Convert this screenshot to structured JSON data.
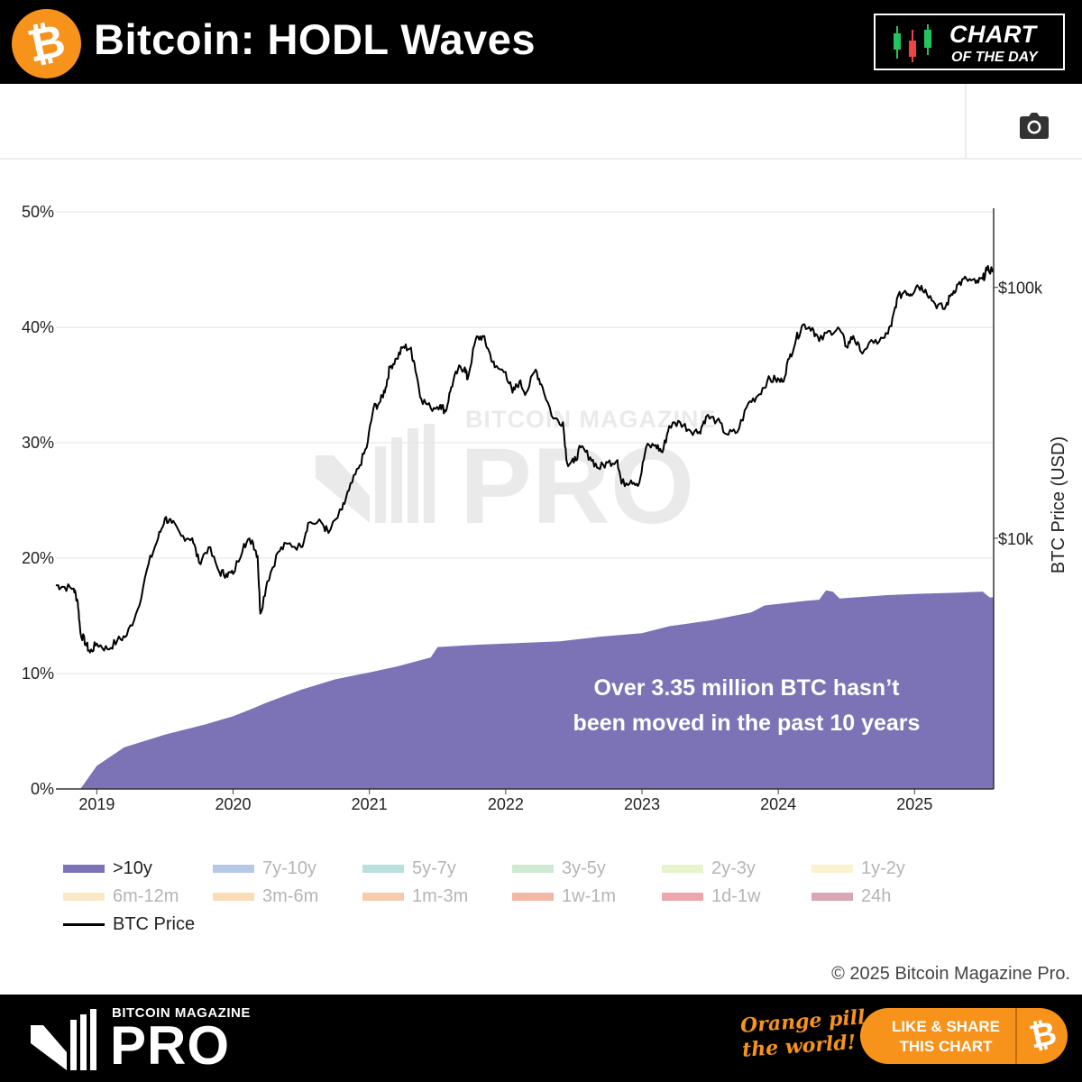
{
  "header": {
    "logo_glyph": "₿",
    "title": "Bitcoin: HODL Waves",
    "badge_line1": "CHART",
    "badge_line2": "OF THE DAY"
  },
  "toolbar": {
    "camera_icon": "camera-icon"
  },
  "watermark": {
    "line1": "BITCOIN MAGAZINE",
    "line2": "PRO"
  },
  "annotation": {
    "line1": "Over 3.35 million BTC hasn’t",
    "line2": "been moved in the past 10 years"
  },
  "legend": {
    "items": [
      {
        "label": ">10y",
        "color": "#7c73b6"
      },
      {
        "label": "7y-10y",
        "color": "#b7c7e6"
      },
      {
        "label": "5y-7y",
        "color": "#b8e0dc"
      },
      {
        "label": "3y-5y",
        "color": "#cfe9d2"
      },
      {
        "label": "2y-3y",
        "color": "#e6f3cc"
      },
      {
        "label": "1y-2y",
        "color": "#fbf3cf"
      },
      {
        "label": "6m-12m",
        "color": "#fbe9c5"
      },
      {
        "label": "3m-6m",
        "color": "#fbdcb7"
      },
      {
        "label": "1m-3m",
        "color": "#f9cbad"
      },
      {
        "label": "1w-1m",
        "color": "#f4b7a6"
      },
      {
        "label": "1d-1w",
        "color": "#eba7ad"
      },
      {
        "label": "24h",
        "color": "#dca6b5"
      }
    ],
    "price_label": "BTC Price"
  },
  "copyright": "© 2025 Bitcoin Magazine Pro.",
  "footer": {
    "brand_small": "BITCOIN MAGAZINE",
    "brand_large": "PRO",
    "slogan_line1": "Orange pill",
    "slogan_line2": "the world!",
    "share_line1": "LIKE & SHARE",
    "share_line2": "THIS CHART",
    "share_glyph": "₿"
  },
  "chart_data": {
    "type": "area",
    "y_left": {
      "ticks": [
        "0%",
        "10%",
        "20%",
        "30%",
        "40%",
        "50%"
      ],
      "range": [
        0,
        50
      ]
    },
    "y_right": {
      "label": "BTC Price (USD)",
      "ticks": [
        "$10k",
        "$100k"
      ],
      "scale": "log",
      "range": [
        1000,
        200000
      ]
    },
    "x": {
      "ticks": [
        "2019",
        "2020",
        "2021",
        "2022",
        "2023",
        "2024",
        "2025"
      ],
      "range": [
        2018.7,
        2025.58
      ]
    },
    "series": [
      {
        "name": ">10y",
        "type": "area",
        "color": "#7c73b6",
        "points": [
          [
            2018.7,
            0
          ],
          [
            2018.88,
            0
          ],
          [
            2019.0,
            2.0
          ],
          [
            2019.2,
            3.6
          ],
          [
            2019.5,
            4.7
          ],
          [
            2019.8,
            5.6
          ],
          [
            2020.0,
            6.3
          ],
          [
            2020.15,
            7.0
          ],
          [
            2020.25,
            7.5
          ],
          [
            2020.5,
            8.6
          ],
          [
            2020.75,
            9.5
          ],
          [
            2021.0,
            10.1
          ],
          [
            2021.2,
            10.6
          ],
          [
            2021.45,
            11.4
          ],
          [
            2021.5,
            12.3
          ],
          [
            2021.8,
            12.5
          ],
          [
            2022.0,
            12.6
          ],
          [
            2022.4,
            12.8
          ],
          [
            2022.7,
            13.2
          ],
          [
            2023.0,
            13.5
          ],
          [
            2023.2,
            14.1
          ],
          [
            2023.5,
            14.6
          ],
          [
            2023.8,
            15.3
          ],
          [
            2023.9,
            15.9
          ],
          [
            2024.2,
            16.3
          ],
          [
            2024.3,
            16.4
          ],
          [
            2024.35,
            17.2
          ],
          [
            2024.4,
            17.1
          ],
          [
            2024.45,
            16.5
          ],
          [
            2024.8,
            16.8
          ],
          [
            2025.0,
            16.9
          ],
          [
            2025.3,
            17.0
          ],
          [
            2025.5,
            17.1
          ],
          [
            2025.55,
            16.6
          ],
          [
            2025.58,
            16.6
          ]
        ]
      },
      {
        "name": "BTC Price",
        "type": "line",
        "axis": "right",
        "color": "#000000",
        "points": [
          [
            2018.7,
            6500
          ],
          [
            2018.75,
            6400
          ],
          [
            2018.83,
            6300
          ],
          [
            2018.86,
            5600
          ],
          [
            2018.88,
            4200
          ],
          [
            2018.92,
            3800
          ],
          [
            2018.95,
            3500
          ],
          [
            2019.0,
            3800
          ],
          [
            2019.08,
            3600
          ],
          [
            2019.15,
            3900
          ],
          [
            2019.22,
            4100
          ],
          [
            2019.3,
            5200
          ],
          [
            2019.38,
            7900
          ],
          [
            2019.45,
            10000
          ],
          [
            2019.5,
            12000
          ],
          [
            2019.55,
            11500
          ],
          [
            2019.62,
            10200
          ],
          [
            2019.7,
            10000
          ],
          [
            2019.75,
            8000
          ],
          [
            2019.82,
            9200
          ],
          [
            2019.9,
            7300
          ],
          [
            2019.95,
            7200
          ],
          [
            2020.0,
            7200
          ],
          [
            2020.08,
            9500
          ],
          [
            2020.14,
            9800
          ],
          [
            2020.18,
            8500
          ],
          [
            2020.2,
            5000
          ],
          [
            2020.25,
            6700
          ],
          [
            2020.33,
            8800
          ],
          [
            2020.4,
            9500
          ],
          [
            2020.5,
            9200
          ],
          [
            2020.55,
            11500
          ],
          [
            2020.65,
            11500
          ],
          [
            2020.7,
            10500
          ],
          [
            2020.8,
            13000
          ],
          [
            2020.85,
            15500
          ],
          [
            2020.92,
            19000
          ],
          [
            2020.98,
            23000
          ],
          [
            2021.03,
            33000
          ],
          [
            2021.08,
            35000
          ],
          [
            2021.12,
            40000
          ],
          [
            2021.15,
            48000
          ],
          [
            2021.2,
            52000
          ],
          [
            2021.25,
            58000
          ],
          [
            2021.3,
            57000
          ],
          [
            2021.33,
            50000
          ],
          [
            2021.38,
            36000
          ],
          [
            2021.45,
            33000
          ],
          [
            2021.52,
            34000
          ],
          [
            2021.56,
            32000
          ],
          [
            2021.6,
            40000
          ],
          [
            2021.65,
            47000
          ],
          [
            2021.7,
            48000
          ],
          [
            2021.72,
            43000
          ],
          [
            2021.78,
            62000
          ],
          [
            2021.83,
            64000
          ],
          [
            2021.87,
            57000
          ],
          [
            2021.92,
            48000
          ],
          [
            2022.0,
            46000
          ],
          [
            2022.05,
            38000
          ],
          [
            2022.1,
            42000
          ],
          [
            2022.15,
            38000
          ],
          [
            2022.22,
            47000
          ],
          [
            2022.27,
            40000
          ],
          [
            2022.35,
            30000
          ],
          [
            2022.42,
            29000
          ],
          [
            2022.45,
            20000
          ],
          [
            2022.5,
            20000
          ],
          [
            2022.55,
            23000
          ],
          [
            2022.62,
            21000
          ],
          [
            2022.68,
            19000
          ],
          [
            2022.75,
            20000
          ],
          [
            2022.82,
            20500
          ],
          [
            2022.85,
            16500
          ],
          [
            2022.92,
            17000
          ],
          [
            2022.98,
            16600
          ],
          [
            2023.03,
            23000
          ],
          [
            2023.1,
            23500
          ],
          [
            2023.15,
            22000
          ],
          [
            2023.2,
            28000
          ],
          [
            2023.28,
            29000
          ],
          [
            2023.35,
            27000
          ],
          [
            2023.42,
            26500
          ],
          [
            2023.47,
            30500
          ],
          [
            2023.55,
            29500
          ],
          [
            2023.62,
            26000
          ],
          [
            2023.7,
            26500
          ],
          [
            2023.78,
            34500
          ],
          [
            2023.85,
            37000
          ],
          [
            2023.92,
            42500
          ],
          [
            2023.98,
            43000
          ],
          [
            2024.03,
            42000
          ],
          [
            2024.08,
            52000
          ],
          [
            2024.13,
            62000
          ],
          [
            2024.18,
            71000
          ],
          [
            2024.25,
            69000
          ],
          [
            2024.3,
            61000
          ],
          [
            2024.38,
            67000
          ],
          [
            2024.45,
            68000
          ],
          [
            2024.5,
            58000
          ],
          [
            2024.55,
            64000
          ],
          [
            2024.6,
            56000
          ],
          [
            2024.7,
            60000
          ],
          [
            2024.78,
            63000
          ],
          [
            2024.83,
            70000
          ],
          [
            2024.87,
            90000
          ],
          [
            2024.93,
            97000
          ],
          [
            2024.97,
            94000
          ],
          [
            2025.02,
            102000
          ],
          [
            2025.08,
            98000
          ],
          [
            2025.15,
            86000
          ],
          [
            2025.22,
            82000
          ],
          [
            2025.27,
            94000
          ],
          [
            2025.32,
            103000
          ],
          [
            2025.38,
            108000
          ],
          [
            2025.45,
            104000
          ],
          [
            2025.5,
            108000
          ],
          [
            2025.53,
            117000
          ],
          [
            2025.58,
            118000
          ]
        ]
      }
    ],
    "annotations": [
      "Over 3.35 million BTC hasn’t been moved in the past 10 years"
    ],
    "grid": true
  }
}
